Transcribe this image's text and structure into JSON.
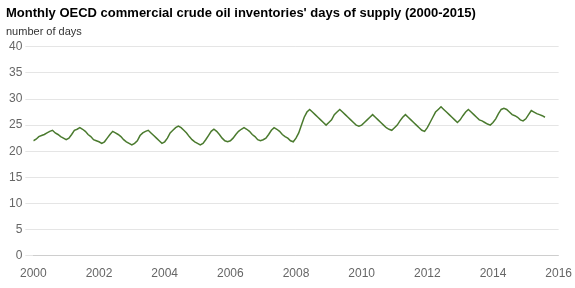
{
  "chart_data": {
    "type": "line",
    "title": "Monthly OECD commercial crude oil inventories' days of supply (2000-2015)",
    "ylabel": "number of days",
    "color": "#4a7a2e",
    "grid": "y",
    "xlim": [
      2000,
      2016
    ],
    "xticks": [
      2000,
      2002,
      2004,
      2006,
      2008,
      2010,
      2012,
      2014,
      2016
    ],
    "ylim": [
      0,
      40
    ],
    "yticks": [
      0,
      5,
      10,
      15,
      20,
      25,
      30,
      35,
      40
    ],
    "x": [
      2000,
      2000.0833,
      2000.1667,
      2000.25,
      2000.3333,
      2000.4167,
      2000.5,
      2000.5833,
      2000.6667,
      2000.75,
      2000.8333,
      2000.9167,
      2001,
      2001.0833,
      2001.1667,
      2001.25,
      2001.3333,
      2001.4167,
      2001.5,
      2001.5833,
      2001.6667,
      2001.75,
      2001.8333,
      2001.9167,
      2002,
      2002.0833,
      2002.1667,
      2002.25,
      2002.3333,
      2002.4167,
      2002.5,
      2002.5833,
      2002.6667,
      2002.75,
      2002.8333,
      2002.9167,
      2003,
      2003.0833,
      2003.1667,
      2003.25,
      2003.3333,
      2003.4167,
      2003.5,
      2003.5833,
      2003.6667,
      2003.75,
      2003.8333,
      2003.9167,
      2004,
      2004.0833,
      2004.1667,
      2004.25,
      2004.3333,
      2004.4167,
      2004.5,
      2004.5833,
      2004.6667,
      2004.75,
      2004.8333,
      2004.9167,
      2005,
      2005.0833,
      2005.1667,
      2005.25,
      2005.3333,
      2005.4167,
      2005.5,
      2005.5833,
      2005.6667,
      2005.75,
      2005.8333,
      2005.9167,
      2006,
      2006.0833,
      2006.1667,
      2006.25,
      2006.3333,
      2006.4167,
      2006.5,
      2006.5833,
      2006.6667,
      2006.75,
      2006.8333,
      2006.9167,
      2007,
      2007.0833,
      2007.1667,
      2007.25,
      2007.3333,
      2007.4167,
      2007.5,
      2007.5833,
      2007.6667,
      2007.75,
      2007.8333,
      2007.9167,
      2008,
      2008.0833,
      2008.1667,
      2008.25,
      2008.3333,
      2008.4167,
      2008.5,
      2008.5833,
      2008.6667,
      2008.75,
      2008.8333,
      2008.9167,
      2009,
      2009.0833,
      2009.1667,
      2009.25,
      2009.3333,
      2009.4167,
      2009.5,
      2009.5833,
      2009.6667,
      2009.75,
      2009.8333,
      2009.9167,
      2010,
      2010.0833,
      2010.1667,
      2010.25,
      2010.3333,
      2010.4167,
      2010.5,
      2010.5833,
      2010.6667,
      2010.75,
      2010.8333,
      2010.9167,
      2011,
      2011.0833,
      2011.1667,
      2011.25,
      2011.3333,
      2011.4167,
      2011.5,
      2011.5833,
      2011.6667,
      2011.75,
      2011.8333,
      2011.9167,
      2012,
      2012.0833,
      2012.1667,
      2012.25,
      2012.3333,
      2012.4167,
      2012.5,
      2012.5833,
      2012.6667,
      2012.75,
      2012.8333,
      2012.9167,
      2013,
      2013.0833,
      2013.1667,
      2013.25,
      2013.3333,
      2013.4167,
      2013.5,
      2013.5833,
      2013.6667,
      2013.75,
      2013.8333,
      2013.9167,
      2014,
      2014.0833,
      2014.1667,
      2014.25,
      2014.3333,
      2014.4167,
      2014.5,
      2014.5833,
      2014.6667,
      2014.75,
      2014.8333,
      2014.9167,
      2015,
      2015.0833,
      2015.1667,
      2015.25,
      2015.3333,
      2015.4167,
      2015.5,
      2015.5833
    ],
    "values": [
      22.0,
      22.3,
      22.8,
      23.0,
      23.2,
      23.5,
      23.8,
      24.0,
      23.5,
      23.2,
      22.8,
      22.5,
      22.2,
      22.5,
      23.2,
      24.0,
      24.2,
      24.5,
      24.2,
      23.8,
      23.2,
      22.8,
      22.2,
      22.0,
      21.8,
      21.5,
      21.8,
      22.5,
      23.2,
      23.8,
      23.5,
      23.2,
      22.8,
      22.2,
      21.8,
      21.5,
      21.2,
      21.5,
      22.0,
      23.0,
      23.5,
      23.8,
      24.0,
      23.5,
      23.0,
      22.5,
      22.0,
      21.5,
      21.8,
      22.5,
      23.5,
      24.0,
      24.5,
      24.8,
      24.5,
      24.0,
      23.5,
      22.8,
      22.2,
      21.8,
      21.5,
      21.2,
      21.5,
      22.2,
      23.0,
      23.8,
      24.2,
      23.8,
      23.2,
      22.5,
      22.0,
      21.8,
      22.0,
      22.5,
      23.2,
      23.8,
      24.2,
      24.5,
      24.2,
      23.8,
      23.2,
      22.8,
      22.2,
      22.0,
      22.2,
      22.5,
      23.2,
      24.0,
      24.5,
      24.2,
      23.8,
      23.2,
      22.8,
      22.5,
      22.0,
      21.8,
      22.5,
      23.5,
      25.0,
      26.5,
      27.5,
      28.0,
      27.5,
      27.0,
      26.5,
      26.0,
      25.5,
      25.0,
      25.5,
      26.0,
      27.0,
      27.5,
      28.0,
      27.5,
      27.0,
      26.5,
      26.0,
      25.5,
      25.0,
      24.8,
      25.0,
      25.5,
      26.0,
      26.5,
      27.0,
      26.5,
      26.0,
      25.5,
      25.0,
      24.5,
      24.2,
      24.0,
      24.5,
      25.0,
      25.8,
      26.5,
      27.0,
      26.5,
      26.0,
      25.5,
      25.0,
      24.5,
      24.0,
      23.8,
      24.5,
      25.5,
      26.5,
      27.5,
      28.0,
      28.5,
      28.0,
      27.5,
      27.0,
      26.5,
      26.0,
      25.5,
      26.0,
      26.8,
      27.5,
      28.0,
      27.5,
      27.0,
      26.5,
      26.0,
      25.8,
      25.5,
      25.2,
      25.0,
      25.5,
      26.2,
      27.2,
      28.0,
      28.2,
      28.0,
      27.5,
      27.0,
      26.8,
      26.5,
      26.0,
      25.8,
      26.2,
      27.0,
      27.8,
      27.5,
      27.2,
      27.0,
      26.8,
      26.5
    ]
  }
}
